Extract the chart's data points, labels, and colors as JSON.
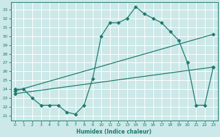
{
  "xlabel": "Humidex (Indice chaleur)",
  "bg_color": "#cce8e8",
  "grid_color": "#ffffff",
  "line_color": "#1a7a6e",
  "xlim": [
    -0.5,
    23.5
  ],
  "ylim": [
    20.5,
    33.8
  ],
  "xticks": [
    0,
    1,
    2,
    3,
    4,
    5,
    6,
    7,
    8,
    9,
    10,
    11,
    12,
    13,
    14,
    15,
    16,
    17,
    18,
    19,
    20,
    21,
    22,
    23
  ],
  "yticks": [
    21,
    22,
    23,
    24,
    25,
    26,
    27,
    28,
    29,
    30,
    31,
    32,
    33
  ],
  "line1_x": [
    0,
    1,
    2,
    3,
    4,
    5,
    6,
    7,
    8,
    9,
    10,
    11,
    12,
    13,
    14,
    15,
    16,
    17,
    18,
    19,
    20,
    21,
    22,
    23
  ],
  "line1_y": [
    24.0,
    24.0,
    23.0,
    22.2,
    22.2,
    22.2,
    21.4,
    21.2,
    22.2,
    25.2,
    30.0,
    31.5,
    31.5,
    32.0,
    33.3,
    32.5,
    32.0,
    31.5,
    30.5,
    29.5,
    27.0,
    22.2,
    22.2,
    26.5
  ],
  "line2_x": [
    0,
    23
  ],
  "line2_y": [
    23.5,
    26.5
  ],
  "line3_x": [
    0,
    23
  ],
  "line3_y": [
    23.8,
    30.2
  ]
}
